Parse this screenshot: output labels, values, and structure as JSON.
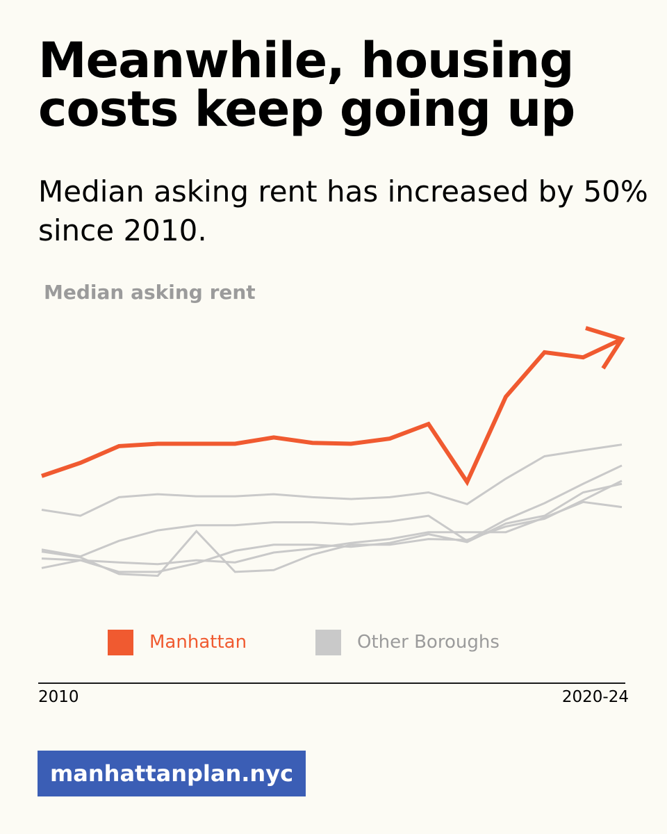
{
  "headline": "Meanwhile, housing costs keep going up",
  "subheadline": "Median asking rent has increased by 50% since 2010.",
  "site": "manhattanplan.nyc",
  "colors": {
    "background": "#fcfbf4",
    "manhattan": "#f05a30",
    "other": "#c9c9c9",
    "badge": "#3b5eb5"
  },
  "chart_data": {
    "type": "line",
    "title": "Median asking rent",
    "x_tick_labels": [
      "2010",
      "2020-24"
    ],
    "x": [
      0,
      1,
      2,
      3,
      4,
      5,
      6,
      7,
      8,
      9,
      10,
      11,
      12,
      13,
      14,
      15
    ],
    "ylim": [
      0,
      100
    ],
    "series": [
      {
        "name": "Manhattan",
        "legend": "Manhattan",
        "values": [
          47.7,
          52.1,
          57.7,
          58.5,
          58.5,
          58.5,
          60.6,
          58.8,
          58.5,
          60.2,
          65.1,
          45.7,
          74.2,
          89.1,
          87.4,
          93.5
        ],
        "arrow": true
      },
      {
        "name": "Other Borough 1",
        "legend": "Other Boroughs",
        "values": [
          36.4,
          34.4,
          40.6,
          41.6,
          40.9,
          40.9,
          41.6,
          40.6,
          40.0,
          40.6,
          42.2,
          38.3,
          46.8,
          54.3,
          56.3,
          58.2
        ]
      },
      {
        "name": "Other Borough 2",
        "values": [
          23.1,
          20.8,
          26.0,
          29.5,
          31.2,
          31.2,
          32.2,
          32.2,
          31.5,
          32.5,
          34.4,
          26.0,
          33.1,
          38.6,
          45.1,
          51.2
        ]
      },
      {
        "name": "Other Borough 3",
        "values": [
          16.9,
          19.5,
          18.8,
          18.2,
          19.5,
          18.8,
          22.1,
          23.4,
          25.3,
          26.6,
          28.9,
          28.9,
          28.9,
          33.8,
          39.0,
          37.3
        ]
      },
      {
        "name": "Other Borough 4",
        "values": [
          20.1,
          19.5,
          15.6,
          15.6,
          18.5,
          22.7,
          24.7,
          24.7,
          24.0,
          25.3,
          28.2,
          25.6,
          31.8,
          34.4,
          42.2,
          45.1
        ]
      },
      {
        "name": "Other Borough 5",
        "values": [
          22.4,
          20.5,
          14.9,
          14.3,
          29.2,
          15.6,
          16.2,
          21.4,
          24.7,
          24.7,
          26.6,
          26.3,
          30.8,
          33.4,
          39.6,
          46.1
        ]
      }
    ]
  }
}
